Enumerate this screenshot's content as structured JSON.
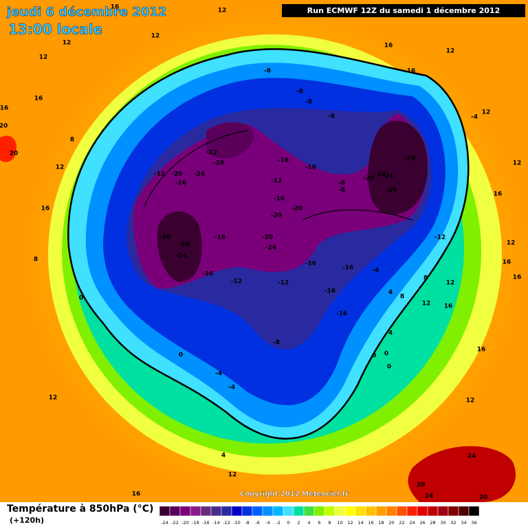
{
  "header": {
    "title": "jeudi 6 décembre 2012",
    "time": "13:00 locale",
    "run": "Run ECMWF 12Z du samedi 1 décembre 2012"
  },
  "copyright": "Copyright 2012 Meteociel.fr",
  "footer": {
    "title": "Température à 850hPa (°C)",
    "lead": "(+120h)"
  },
  "legend": {
    "ticks": [
      -24,
      -22,
      -20,
      -18,
      -16,
      -14,
      -12,
      -10,
      -8,
      -6,
      -4,
      -2,
      0,
      2,
      4,
      6,
      8,
      10,
      12,
      14,
      16,
      18,
      20,
      22,
      24,
      26,
      28,
      30,
      32,
      34,
      36
    ],
    "colors": [
      "#3a0030",
      "#5a005a",
      "#7a007a",
      "#8a1a8a",
      "#6a2a7a",
      "#4a2a8a",
      "#2a2aa0",
      "#0000c8",
      "#0030e0",
      "#0060ff",
      "#0090ff",
      "#00b8ff",
      "#40e0ff",
      "#00e0a0",
      "#40e040",
      "#80f000",
      "#c0ff00",
      "#f0ff40",
      "#ffff00",
      "#ffe000",
      "#ffc000",
      "#ffa000",
      "#ff8000",
      "#ff5000",
      "#ff2000",
      "#e00000",
      "#c00000",
      "#a00010",
      "#800000",
      "#500000",
      "#000000"
    ]
  },
  "contour_labels": [
    12,
    16,
    12,
    12,
    12,
    16,
    16,
    20,
    20,
    8,
    12,
    16,
    8,
    0,
    12,
    16,
    12,
    4,
    -4,
    -4,
    0,
    -8,
    -8,
    -8,
    -8,
    -8,
    -12,
    -20,
    -12,
    -20,
    -24,
    -16,
    -16,
    -16,
    -12,
    -8,
    -8,
    -16,
    -20,
    -20,
    -20,
    -28,
    -24,
    -16,
    -20,
    -24,
    -16,
    -12,
    -12,
    -16,
    -16,
    -16,
    -16,
    -4,
    4,
    8,
    0,
    0,
    0,
    4,
    -28,
    -24,
    -20,
    -24,
    -28,
    -12,
    12,
    8,
    12,
    16,
    16,
    12,
    16,
    16,
    12,
    12,
    -4,
    12,
    16,
    12,
    16,
    16,
    20,
    24,
    24,
    20
  ]
}
